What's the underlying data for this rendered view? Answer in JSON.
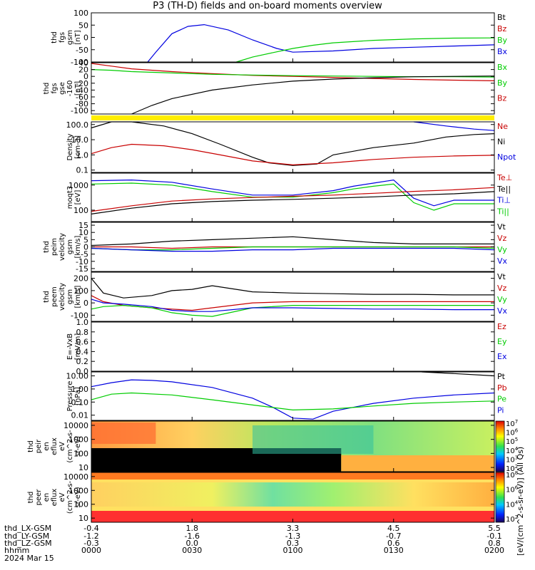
{
  "title": "P3 (TH-D) fields and on-board moments overview",
  "colors": {
    "black": "#000000",
    "red": "#c80000",
    "green": "#00cc00",
    "blue": "#0000e0",
    "yellow": "#ffee00"
  },
  "chart_data": [
    {
      "type": "line",
      "panel": "fgs_gsm",
      "ylabel": [
        "thd",
        "fgs",
        "gsm",
        "[nT]"
      ],
      "yticks": [
        "100",
        "50",
        "0",
        "-50",
        "-100"
      ],
      "ylim": [
        -100,
        100
      ],
      "legend": [
        {
          "text": "Bt",
          "color": "black"
        },
        {
          "text": "Bz",
          "color": "red"
        },
        {
          "text": "By",
          "color": "green"
        },
        {
          "text": "Bx",
          "color": "blue"
        }
      ],
      "series": [
        {
          "name": "Bx",
          "color": "blue",
          "x": [
            0.14,
            0.16,
            0.2,
            0.24,
            0.28,
            0.34,
            0.4,
            0.46,
            0.5,
            0.6,
            0.7,
            0.8,
            0.9,
            1.0
          ],
          "y": [
            -100,
            -60,
            15,
            45,
            52,
            30,
            -10,
            -45,
            -60,
            -55,
            -45,
            -40,
            -35,
            -30
          ]
        },
        {
          "name": "By",
          "color": "green",
          "x": [
            0.36,
            0.4,
            0.45,
            0.5,
            0.55,
            0.6,
            0.7,
            0.8,
            0.9,
            1.0
          ],
          "y": [
            -100,
            -80,
            -62,
            -45,
            -32,
            -22,
            -12,
            -6,
            -3,
            -2
          ]
        }
      ]
    },
    {
      "type": "line",
      "panel": "fgs_gse",
      "ylabel": [
        "thd",
        "fgs",
        "gse",
        "-160",
        "[nT]"
      ],
      "yticks": [
        "40",
        "20",
        "0",
        "-20",
        "-40",
        "-60",
        "-80",
        "-100"
      ],
      "ylim": [
        -110,
        40
      ],
      "legend": [
        {
          "text": "Bx",
          "color": "green"
        },
        {
          "text": "By",
          "color": "green"
        },
        {
          "text": "Bz",
          "color": "red"
        }
      ],
      "series": [
        {
          "name": "Bz",
          "color": "red",
          "x": [
            0.0,
            0.05,
            0.1,
            0.2,
            0.3,
            0.4,
            0.5,
            0.6,
            0.7,
            0.8,
            0.9,
            1.0
          ],
          "y": [
            38,
            30,
            22,
            14,
            8,
            3,
            0,
            -3,
            -6,
            -9,
            -11,
            -13
          ]
        },
        {
          "name": "By",
          "color": "green",
          "x": [
            0.0,
            0.05,
            0.1,
            0.2,
            0.3,
            0.4,
            0.5,
            0.6,
            0.7,
            0.8,
            0.9,
            1.0
          ],
          "y": [
            20,
            18,
            14,
            10,
            6,
            4,
            2,
            1,
            0,
            -1,
            -1,
            -2
          ]
        },
        {
          "name": "Bt",
          "color": "black",
          "x": [
            0.1,
            0.15,
            0.2,
            0.3,
            0.4,
            0.5,
            0.6,
            0.7,
            0.8,
            0.9,
            1.0
          ],
          "y": [
            -110,
            -85,
            -65,
            -40,
            -25,
            -14,
            -8,
            -4,
            -1,
            0,
            1
          ]
        }
      ]
    },
    {
      "type": "line",
      "panel": "density",
      "ylabel": [
        "Density",
        "[cm-3]"
      ],
      "ylog": true,
      "yticks": [
        "100.0",
        "10.0",
        "1.0",
        "0.1"
      ],
      "ylim": [
        0.07,
        150
      ],
      "legend": [
        {
          "text": "Ne",
          "color": "red"
        },
        {
          "text": "Ni",
          "color": "black"
        },
        {
          "text": "Npot",
          "color": "blue"
        }
      ],
      "series": [
        {
          "name": "Ni",
          "color": "black",
          "x": [
            0.0,
            0.05,
            0.1,
            0.18,
            0.25,
            0.32,
            0.4,
            0.44,
            0.5,
            0.56,
            0.6,
            0.7,
            0.8,
            0.88,
            0.95,
            1.0
          ],
          "y": [
            60,
            150,
            150,
            80,
            25,
            5,
            0.7,
            0.3,
            0.2,
            0.25,
            1.0,
            3,
            6,
            15,
            22,
            25
          ]
        },
        {
          "name": "Ne",
          "color": "red",
          "x": [
            0.0,
            0.05,
            0.1,
            0.18,
            0.25,
            0.32,
            0.4,
            0.5,
            0.6,
            0.7,
            0.8,
            0.9,
            1.0
          ],
          "y": [
            1.2,
            3,
            5,
            4,
            2.2,
            1.0,
            0.4,
            0.22,
            0.3,
            0.5,
            0.7,
            0.85,
            0.95
          ]
        },
        {
          "name": "Npot",
          "color": "blue",
          "x": [
            0.8,
            0.88,
            0.95,
            1.0
          ],
          "y": [
            150,
            80,
            50,
            40
          ]
        }
      ]
    },
    {
      "type": "line",
      "panel": "temperature",
      "ylabel": [
        "moqt3",
        "[eV]"
      ],
      "ylog": true,
      "yticks": [
        "1000",
        "100"
      ],
      "ylim": [
        35,
        3000
      ],
      "legend": [
        {
          "text": "Te⊥",
          "color": "red"
        },
        {
          "text": "Te||",
          "color": "black"
        },
        {
          "text": "Ti⊥",
          "color": "blue"
        },
        {
          "text": "Ti||",
          "color": "green"
        }
      ],
      "series": [
        {
          "name": "Ti⊥",
          "color": "blue",
          "x": [
            0.0,
            0.1,
            0.2,
            0.3,
            0.4,
            0.5,
            0.6,
            0.65,
            0.7,
            0.75,
            0.8,
            0.85,
            0.9,
            1.0
          ],
          "y": [
            1500,
            1600,
            1300,
            700,
            400,
            400,
            600,
            900,
            1200,
            1600,
            300,
            150,
            250,
            250
          ]
        },
        {
          "name": "Ti||",
          "color": "green",
          "x": [
            0.0,
            0.1,
            0.2,
            0.3,
            0.4,
            0.5,
            0.6,
            0.65,
            0.7,
            0.75,
            0.8,
            0.85,
            0.9,
            1.0
          ],
          "y": [
            1100,
            1200,
            1000,
            550,
            330,
            330,
            500,
            700,
            900,
            1100,
            200,
            100,
            180,
            180
          ]
        },
        {
          "name": "Te⊥",
          "color": "red",
          "x": [
            0.0,
            0.1,
            0.2,
            0.3,
            0.4,
            0.5,
            0.6,
            0.7,
            0.8,
            0.9,
            1.0
          ],
          "y": [
            90,
            150,
            230,
            280,
            320,
            360,
            400,
            470,
            560,
            650,
            800
          ]
        },
        {
          "name": "Te||",
          "color": "black",
          "x": [
            0.0,
            0.1,
            0.2,
            0.3,
            0.4,
            0.5,
            0.6,
            0.7,
            0.8,
            0.9,
            1.0
          ],
          "y": [
            70,
            120,
            180,
            220,
            250,
            270,
            300,
            340,
            400,
            450,
            550
          ]
        }
      ]
    },
    {
      "type": "line",
      "panel": "peim_velocity",
      "ylabel": [
        "thd",
        "peim",
        "velocity",
        "gsm",
        "[km/s]"
      ],
      "yticks": [
        "15",
        "10",
        "5",
        "0",
        "-5",
        "-10",
        "-15"
      ],
      "ylim": [
        -17,
        17
      ],
      "legend": [
        {
          "text": "Vt",
          "color": "black"
        },
        {
          "text": "Vz",
          "color": "red"
        },
        {
          "text": "Vy",
          "color": "green"
        },
        {
          "text": "Vx",
          "color": "blue"
        }
      ],
      "series": [
        {
          "name": "Vt",
          "color": "black",
          "x": [
            0.0,
            0.1,
            0.2,
            0.3,
            0.4,
            0.5,
            0.6,
            0.7,
            0.8,
            0.9,
            1.0
          ],
          "y": [
            1,
            2,
            4,
            5,
            6,
            7,
            5,
            3,
            2,
            2,
            2
          ]
        },
        {
          "name": "Vz",
          "color": "red",
          "x": [
            0.0,
            0.1,
            0.2,
            0.3,
            0.4,
            0.5,
            0.6,
            0.7,
            0.8,
            0.9,
            1.0
          ],
          "y": [
            0,
            0,
            -1,
            0,
            0,
            0,
            0,
            0,
            0,
            0,
            0
          ]
        },
        {
          "name": "Vy",
          "color": "green",
          "x": [
            0.0,
            0.1,
            0.2,
            0.3,
            0.4,
            0.5,
            0.6,
            0.7,
            0.8,
            0.9,
            1.0
          ],
          "y": [
            -1,
            -2,
            -2,
            -1,
            0,
            0,
            0,
            0,
            0,
            0,
            -1
          ]
        },
        {
          "name": "Vx",
          "color": "blue",
          "x": [
            0.0,
            0.1,
            0.2,
            0.3,
            0.4,
            0.5,
            0.6,
            0.7,
            0.8,
            0.9,
            1.0
          ],
          "y": [
            -1,
            -2,
            -3,
            -3,
            -2,
            -2,
            -1,
            -1,
            -1,
            -1,
            -2
          ]
        }
      ]
    },
    {
      "type": "line",
      "panel": "peem_velocity",
      "ylabel": [
        "thd",
        "peem",
        "velocity",
        "gsm",
        "[km/s]"
      ],
      "yticks": [
        "200",
        "100",
        "0",
        "-100"
      ],
      "ylim": [
        -150,
        250
      ],
      "legend": [
        {
          "text": "Vt",
          "color": "black"
        },
        {
          "text": "Vz",
          "color": "red"
        },
        {
          "text": "Vy",
          "color": "green"
        },
        {
          "text": "Vx",
          "color": "blue"
        }
      ],
      "series": [
        {
          "name": "Vt",
          "color": "black",
          "x": [
            0.0,
            0.03,
            0.08,
            0.15,
            0.2,
            0.25,
            0.3,
            0.4,
            0.5,
            0.6,
            0.7,
            0.8,
            0.9,
            1.0
          ],
          "y": [
            200,
            80,
            40,
            60,
            100,
            110,
            140,
            90,
            80,
            75,
            70,
            70,
            65,
            65
          ]
        },
        {
          "name": "Vz",
          "color": "red",
          "x": [
            0.0,
            0.03,
            0.08,
            0.15,
            0.2,
            0.25,
            0.3,
            0.4,
            0.5,
            0.6,
            0.7,
            0.8,
            0.9,
            1.0
          ],
          "y": [
            60,
            10,
            -20,
            -40,
            -50,
            -60,
            -40,
            0,
            10,
            10,
            10,
            10,
            10,
            10
          ]
        },
        {
          "name": "Vy",
          "color": "green",
          "x": [
            0.0,
            0.03,
            0.08,
            0.15,
            0.2,
            0.25,
            0.3,
            0.4,
            0.5,
            0.6,
            0.7,
            0.8,
            0.9,
            1.0
          ],
          "y": [
            -50,
            -30,
            -20,
            -40,
            -80,
            -100,
            -110,
            -40,
            -20,
            -20,
            -20,
            -20,
            -20,
            -20
          ]
        },
        {
          "name": "Vx",
          "color": "blue",
          "x": [
            0.0,
            0.03,
            0.08,
            0.15,
            0.2,
            0.25,
            0.3,
            0.4,
            0.5,
            0.6,
            0.7,
            0.8,
            0.9,
            1.0
          ],
          "y": [
            30,
            0,
            -10,
            -30,
            -60,
            -70,
            -70,
            -40,
            -40,
            -45,
            -50,
            -50,
            -55,
            -55
          ]
        }
      ]
    },
    {
      "type": "line",
      "panel": "efield",
      "ylabel": [
        "E=-VxB",
        "[mV/m]"
      ],
      "yticks": [
        "1.0",
        "0.8",
        "0.6",
        "0.4",
        "0.2",
        "0.0"
      ],
      "ylim": [
        0,
        1
      ],
      "legend": [
        {
          "text": "Ez",
          "color": "red"
        },
        {
          "text": "Ey",
          "color": "green"
        },
        {
          "text": "Ex",
          "color": "blue"
        }
      ],
      "series": []
    },
    {
      "type": "line",
      "panel": "pressure",
      "ylabel": [
        "Pressure",
        "[nPa]"
      ],
      "ylog": true,
      "yticks": [
        "10.00",
        "1.00",
        "0.10",
        "0.01"
      ],
      "ylim": [
        0.004,
        20
      ],
      "legend": [
        {
          "text": "Pt",
          "color": "black"
        },
        {
          "text": "Pb",
          "color": "red"
        },
        {
          "text": "Pe",
          "color": "green"
        },
        {
          "text": "Pi",
          "color": "blue"
        }
      ],
      "series": [
        {
          "name": "Pi",
          "color": "blue",
          "x": [
            0.0,
            0.05,
            0.1,
            0.15,
            0.2,
            0.3,
            0.4,
            0.45,
            0.5,
            0.55,
            0.6,
            0.7,
            0.8,
            0.9,
            1.0
          ],
          "y": [
            1.5,
            3,
            5,
            4.5,
            3.5,
            1.3,
            0.2,
            0.04,
            0.006,
            0.005,
            0.02,
            0.08,
            0.2,
            0.35,
            0.5
          ]
        },
        {
          "name": "Pe",
          "color": "green",
          "x": [
            0.0,
            0.05,
            0.1,
            0.2,
            0.3,
            0.4,
            0.5,
            0.6,
            0.7,
            0.8,
            0.9,
            1.0
          ],
          "y": [
            0.15,
            0.4,
            0.5,
            0.35,
            0.15,
            0.06,
            0.025,
            0.03,
            0.05,
            0.08,
            0.1,
            0.12
          ]
        },
        {
          "name": "Pt",
          "color": "black",
          "x": [
            0.82,
            0.9,
            1.0
          ],
          "y": [
            20,
            15,
            10
          ]
        }
      ]
    },
    {
      "type": "heatmap",
      "panel": "peir_eflux",
      "ylabel": [
        "thd",
        "peir",
        "en",
        "eflux",
        "eV",
        "(cm^2-s-",
        "sr-eV)"
      ],
      "ylog": true,
      "yticks": [
        "10000",
        "1000",
        "100",
        "10"
      ],
      "ylim": [
        5,
        20000
      ],
      "colorbar_ticks": [
        "10^7",
        "10^6",
        "10^5",
        "10^4",
        "10^3",
        "10^2"
      ]
    },
    {
      "type": "heatmap",
      "panel": "peer_eflux",
      "ylabel": [
        "thd",
        "peer",
        "en",
        "eflux",
        "eV",
        "(cm^2-s-",
        "sr-eV)"
      ],
      "ylog": true,
      "yticks": [
        "10000",
        "1000",
        "100",
        "10"
      ],
      "ylim": [
        5,
        20000
      ],
      "colorbar_ticks": [
        "10^8",
        "10^6",
        "10^4",
        "10^2"
      ]
    }
  ],
  "colorbar_label": "[eV/(cm^2-s-sr-eV)] (All Qs)",
  "footer": {
    "labels": [
      "thd_LX-GSM",
      "thd_LY-GSM",
      "thd_LZ-GSM",
      "hhmm",
      "2024 Mar 15"
    ],
    "columns": [
      [
        "-0.4",
        "-1.2",
        "-0.3",
        "0000"
      ],
      [
        "1.8",
        "-1.6",
        "0.0",
        "0030"
      ],
      [
        "3.3",
        "-1.3",
        "0.3",
        "0100"
      ],
      [
        "4.5",
        "-0.7",
        "0.6",
        "0130"
      ],
      [
        "5.5",
        "-0.1",
        "0.8",
        "0200"
      ]
    ]
  }
}
